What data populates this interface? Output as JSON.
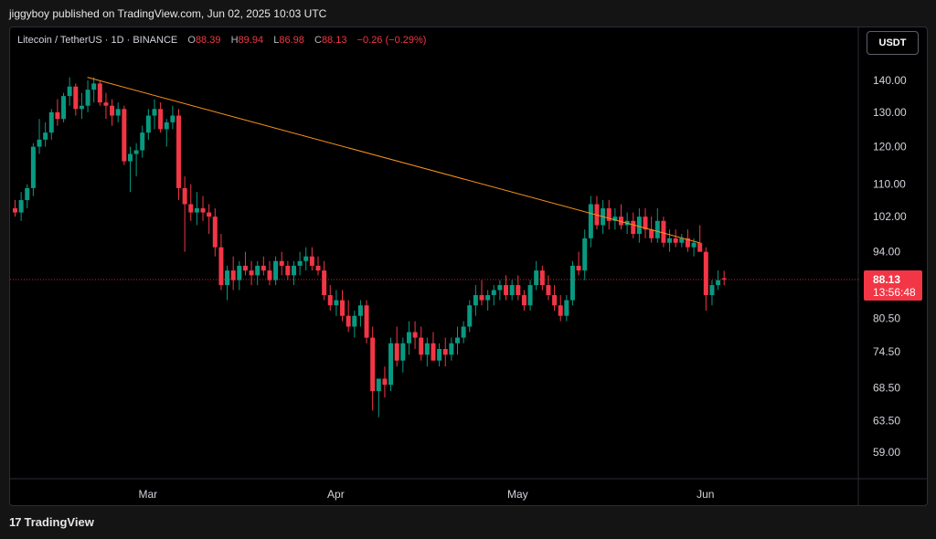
{
  "header": {
    "publish_line": "jiggyboy published on TradingView.com, Jun 02, 2025 10:03 UTC"
  },
  "legend": {
    "symbol": "Litecoin / TetherUS · 1D · BINANCE",
    "o_label": "O",
    "o_value": "88.39",
    "h_label": "H",
    "h_value": "89.94",
    "l_label": "L",
    "l_value": "86.98",
    "c_label": "C",
    "c_value": "88.13",
    "change": "−0.26 (−0.29%)"
  },
  "currency_button": "USDT",
  "price_badge": {
    "price": "88.13",
    "countdown": "13:56:48"
  },
  "footer": {
    "brand": "TradingView",
    "logo_glyph": "17"
  },
  "colors": {
    "up": "#089981",
    "down": "#f23645",
    "trendline": "#f7931a",
    "grid": "#000000"
  },
  "chart_data": {
    "type": "candlestick",
    "symbol": "LTC/USDT",
    "interval": "1D",
    "x_ticks": [
      "Mar",
      "Apr",
      "May",
      "Jun"
    ],
    "y_ticks": [
      "140.00",
      "130.00",
      "120.00",
      "110.00",
      "102.00",
      "94.00",
      "80.50",
      "74.50",
      "68.50",
      "63.50",
      "59.00"
    ],
    "y_scale": "log",
    "last_price": 88.13,
    "trendline": {
      "from": {
        "index": 12,
        "price": 141
      },
      "to": {
        "index": 113,
        "price": 96
      }
    },
    "candles": [
      [
        104,
        106,
        102,
        103
      ],
      [
        103,
        108,
        101,
        106
      ],
      [
        106,
        110,
        104,
        109
      ],
      [
        109,
        121,
        107,
        120
      ],
      [
        120,
        128,
        118,
        122
      ],
      [
        122,
        127,
        120,
        124
      ],
      [
        124,
        131,
        122,
        130
      ],
      [
        130,
        134,
        126,
        128
      ],
      [
        128,
        136,
        127,
        135
      ],
      [
        135,
        141,
        132,
        138
      ],
      [
        138,
        139,
        129,
        131
      ],
      [
        131,
        136,
        128,
        132
      ],
      [
        132,
        140,
        130,
        137
      ],
      [
        137,
        141,
        133,
        139
      ],
      [
        139,
        140,
        132,
        133
      ],
      [
        133,
        136,
        128,
        132
      ],
      [
        132,
        134,
        126,
        129
      ],
      [
        129,
        133,
        127,
        131
      ],
      [
        131,
        132,
        115,
        116
      ],
      [
        116,
        120,
        108,
        118
      ],
      [
        118,
        121,
        112,
        119
      ],
      [
        119,
        126,
        117,
        124
      ],
      [
        124,
        131,
        122,
        129
      ],
      [
        129,
        134,
        125,
        131
      ],
      [
        131,
        133,
        124,
        125
      ],
      [
        125,
        128,
        120,
        127
      ],
      [
        127,
        132,
        125,
        129
      ],
      [
        129,
        131,
        106,
        109
      ],
      [
        109,
        112,
        94,
        105
      ],
      [
        105,
        110,
        101,
        103
      ],
      [
        103,
        108,
        100,
        104
      ],
      [
        104,
        107,
        101,
        103
      ],
      [
        103,
        105,
        98,
        102
      ],
      [
        102,
        104,
        93,
        95
      ],
      [
        95,
        98,
        86,
        87
      ],
      [
        87,
        91,
        84,
        90
      ],
      [
        90,
        93,
        86,
        88
      ],
      [
        88,
        92,
        86,
        91
      ],
      [
        91,
        94,
        89,
        90
      ],
      [
        90,
        92,
        87,
        89
      ],
      [
        89,
        92,
        87,
        91
      ],
      [
        91,
        93,
        89,
        90
      ],
      [
        90,
        92,
        87,
        88
      ],
      [
        88,
        93,
        87,
        92
      ],
      [
        92,
        94,
        89,
        91
      ],
      [
        91,
        92,
        88,
        89
      ],
      [
        89,
        92,
        87,
        91
      ],
      [
        91,
        94,
        89,
        92
      ],
      [
        92,
        95,
        90,
        93
      ],
      [
        93,
        95,
        90,
        91
      ],
      [
        91,
        93,
        89,
        90
      ],
      [
        90,
        92,
        84,
        85
      ],
      [
        85,
        87,
        82,
        83
      ],
      [
        83,
        86,
        81,
        84
      ],
      [
        84,
        86,
        80,
        81
      ],
      [
        81,
        84,
        78,
        79
      ],
      [
        79,
        82,
        77,
        81
      ],
      [
        81,
        84,
        79,
        83
      ],
      [
        83,
        84,
        76,
        77
      ],
      [
        77,
        79,
        65,
        68
      ],
      [
        68,
        70,
        64,
        70
      ],
      [
        70,
        72,
        67,
        69
      ],
      [
        69,
        77,
        68,
        76
      ],
      [
        76,
        79,
        72,
        73
      ],
      [
        73,
        77,
        71,
        76
      ],
      [
        76,
        80,
        74,
        78
      ],
      [
        78,
        80,
        75,
        77
      ],
      [
        77,
        79,
        73,
        74
      ],
      [
        74,
        77,
        72,
        76
      ],
      [
        76,
        78,
        73,
        73
      ],
      [
        73,
        76,
        72,
        75
      ],
      [
        75,
        77,
        72,
        74
      ],
      [
        74,
        77,
        73,
        76
      ],
      [
        76,
        79,
        74,
        77
      ],
      [
        77,
        80,
        76,
        79
      ],
      [
        79,
        84,
        78,
        83
      ],
      [
        83,
        87,
        81,
        85
      ],
      [
        85,
        88,
        83,
        84
      ],
      [
        84,
        86,
        82,
        85
      ],
      [
        85,
        87,
        83,
        86
      ],
      [
        86,
        88,
        84,
        87
      ],
      [
        87,
        89,
        84,
        85
      ],
      [
        85,
        88,
        84,
        87
      ],
      [
        87,
        89,
        84,
        85
      ],
      [
        85,
        86,
        82,
        83
      ],
      [
        83,
        88,
        82,
        87
      ],
      [
        87,
        92,
        86,
        90
      ],
      [
        90,
        91,
        86,
        87
      ],
      [
        87,
        89,
        84,
        85
      ],
      [
        85,
        87,
        82,
        83
      ],
      [
        83,
        85,
        80,
        81
      ],
      [
        81,
        85,
        80,
        84
      ],
      [
        84,
        92,
        83,
        91
      ],
      [
        91,
        94,
        89,
        90
      ],
      [
        90,
        99,
        88,
        97
      ],
      [
        97,
        107,
        95,
        105
      ],
      [
        105,
        107,
        99,
        100
      ],
      [
        100,
        106,
        98,
        104
      ],
      [
        104,
        106,
        99,
        101
      ],
      [
        101,
        104,
        99,
        102
      ],
      [
        102,
        105,
        99,
        100
      ],
      [
        100,
        103,
        98,
        101
      ],
      [
        101,
        103,
        97,
        98
      ],
      [
        98,
        104,
        96,
        102
      ],
      [
        102,
        104,
        97,
        99
      ],
      [
        99,
        102,
        96,
        97
      ],
      [
        97,
        104,
        96,
        101
      ],
      [
        101,
        102,
        95,
        96
      ],
      [
        96,
        99,
        94,
        97
      ],
      [
        97,
        99,
        95,
        96
      ],
      [
        96,
        98,
        95,
        97
      ],
      [
        97,
        99,
        94,
        95
      ],
      [
        95,
        97,
        93,
        96
      ],
      [
        96,
        100,
        94,
        94
      ],
      [
        94,
        95,
        82,
        85
      ],
      [
        85,
        88,
        83,
        87
      ],
      [
        87,
        90,
        86,
        88
      ],
      [
        88.39,
        89.94,
        86.98,
        88.13
      ]
    ]
  }
}
